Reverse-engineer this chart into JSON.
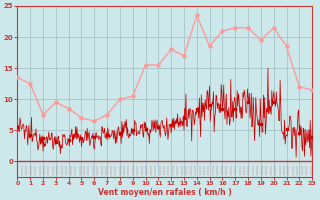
{
  "title": "",
  "xlabel": "Vent moyen/en rafales ( km/h )",
  "background_color": "#cce8ea",
  "grid_color": "#aac8cc",
  "axis_color": "#cc3333",
  "text_color": "#cc3333",
  "xlim": [
    0,
    23
  ],
  "ylim": [
    0,
    25
  ],
  "yticks": [
    0,
    5,
    10,
    15,
    20,
    25
  ],
  "xticks": [
    0,
    1,
    2,
    3,
    4,
    5,
    6,
    7,
    8,
    9,
    10,
    11,
    12,
    13,
    14,
    15,
    16,
    17,
    18,
    19,
    20,
    21,
    22,
    23
  ],
  "avg_x": [
    0,
    1,
    2,
    3,
    4,
    5,
    6,
    7,
    8,
    9,
    10,
    11,
    12,
    13,
    14,
    15,
    16,
    17,
    18,
    19,
    20,
    21,
    22,
    23
  ],
  "avg_y": [
    13.5,
    12.5,
    7.5,
    9.5,
    8.5,
    7.0,
    6.5,
    7.5,
    10.0,
    10.5,
    15.5,
    15.5,
    18.0,
    17.0,
    23.5,
    18.5,
    21.0,
    21.5,
    21.5,
    19.5,
    21.5,
    18.5,
    12.0,
    11.5
  ],
  "hourly_wind": [
    5.5,
    4.2,
    3.8,
    3.2,
    3.5,
    3.8,
    4.0,
    4.2,
    4.5,
    5.0,
    5.2,
    5.5,
    5.8,
    7.0,
    8.5,
    9.0,
    8.5,
    8.5,
    9.5,
    6.0,
    9.5,
    5.2,
    4.5,
    4.0
  ],
  "avg_color": "#ff9999",
  "wind_color": "#cc0000",
  "symbol_color": "#cc0000"
}
